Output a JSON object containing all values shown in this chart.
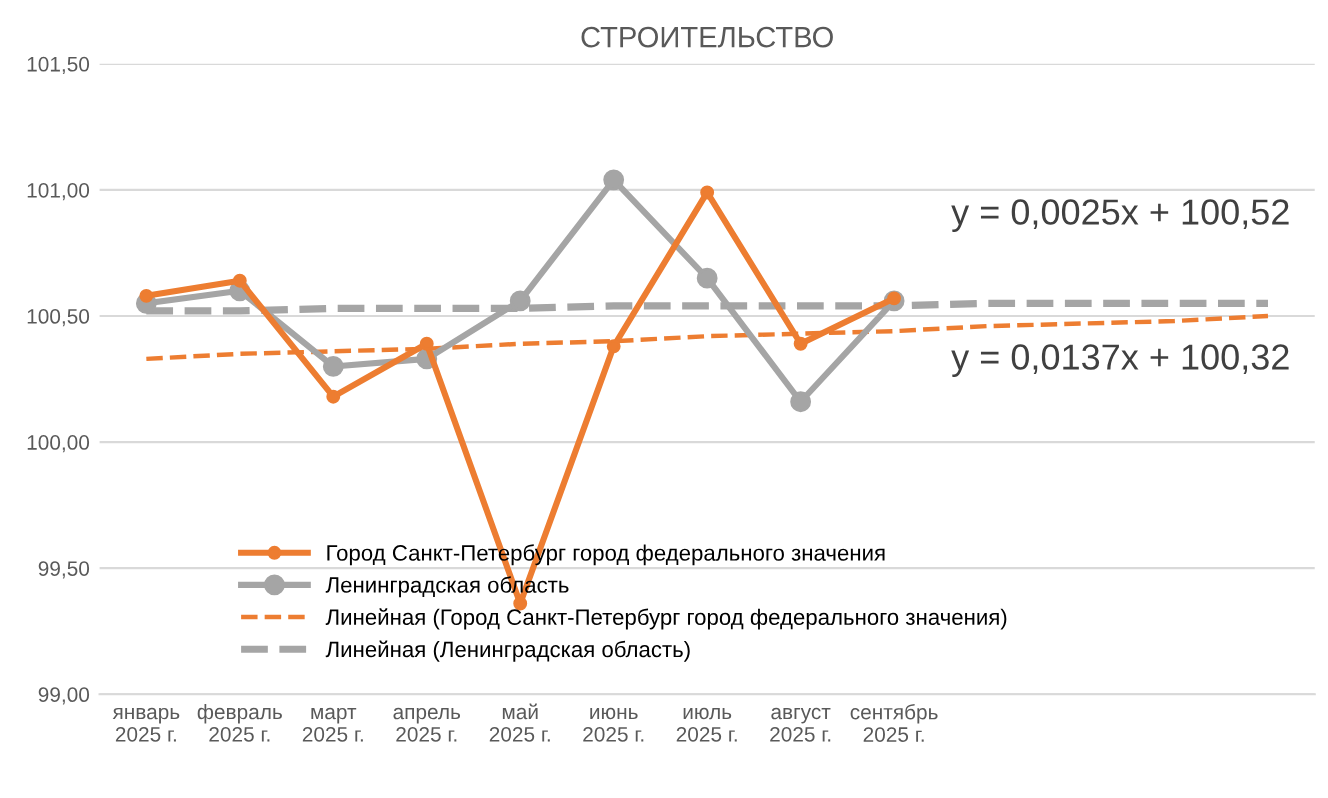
{
  "chart_data": {
    "type": "line",
    "title": "СТРОИТЕЛЬСТВО",
    "categories": [
      "январь 2025 г.",
      "февраль 2025 г.",
      "март 2025 г.",
      "апрель 2025 г.",
      "май 2025 г.",
      "июнь 2025 г.",
      "июль 2025 г.",
      "август 2025 г.",
      "сентябрь 2025 г.",
      null,
      null,
      null,
      null
    ],
    "series": [
      {
        "name": "Город Санкт-Петербург город федерального значения",
        "color": "#ed7d31",
        "marker": "circle",
        "line_style": "solid",
        "values": [
          100.58,
          100.64,
          100.18,
          100.39,
          99.36,
          100.38,
          100.99,
          100.39,
          100.57,
          null,
          null,
          null,
          null
        ]
      },
      {
        "name": "Ленинградская область",
        "color": "#a5a5a5",
        "marker": "circle",
        "line_style": "solid",
        "values": [
          100.55,
          100.6,
          100.3,
          100.33,
          100.56,
          101.04,
          100.65,
          100.16,
          100.56,
          null,
          null,
          null,
          null
        ]
      },
      {
        "name": "Линейная (Город Санкт-Петербург город федерального значения)",
        "color": "#ed7d31",
        "marker": "none",
        "line_style": "dashed",
        "values": [
          100.33,
          100.35,
          100.36,
          100.37,
          100.39,
          100.4,
          100.42,
          100.43,
          100.44,
          100.46,
          100.47,
          100.48,
          100.5
        ]
      },
      {
        "name": "Линейная (Ленинградская область)",
        "color": "#a5a5a5",
        "marker": "none",
        "line_style": "dashed",
        "values": [
          100.52,
          100.52,
          100.53,
          100.53,
          100.53,
          100.54,
          100.54,
          100.54,
          100.54,
          100.55,
          100.55,
          100.55,
          100.55
        ]
      }
    ],
    "ylim": [
      99.0,
      101.5
    ],
    "yticks": [
      {
        "value": 99.0,
        "label": "99,00"
      },
      {
        "value": 99.5,
        "label": "99,50"
      },
      {
        "value": 100.0,
        "label": "100,00"
      },
      {
        "value": 100.5,
        "label": "100,50"
      },
      {
        "value": 101.0,
        "label": "101,00"
      },
      {
        "value": 101.5,
        "label": "101,50"
      }
    ],
    "grid": "y",
    "legend": "bottom left",
    "annotations": [
      "y = 0,0025x + 100,52",
      "y = 0,0137x + 100,32"
    ]
  }
}
